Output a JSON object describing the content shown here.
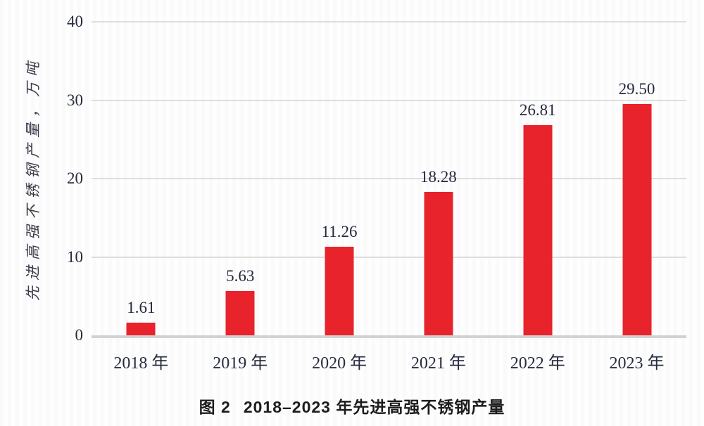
{
  "chart_data": {
    "type": "bar",
    "categories": [
      "2018 年",
      "2019 年",
      "2020 年",
      "2021 年",
      "2022 年",
      "2023 年"
    ],
    "values": [
      1.61,
      5.63,
      11.26,
      18.28,
      26.81,
      29.5
    ],
    "value_labels": [
      "1.61",
      "5.63",
      "11.26",
      "18.28",
      "26.81",
      "29.50"
    ],
    "series_name": "先进高强不锈钢产量",
    "title": "图 2 2018–2023 年先进高强不锈钢产量",
    "xlabel": "",
    "ylabel": "先进高强不锈钢产量，万吨",
    "ylim": [
      0,
      40
    ],
    "yticks": [
      0,
      10,
      20,
      30,
      40
    ],
    "grid": "horizontal",
    "legend": "none",
    "bar_color": "#e8232b"
  },
  "caption": {
    "prefix": "图 2",
    "text": "2018–2023 年先进高强不锈钢产量"
  },
  "colors": {
    "bar": "#e8232b",
    "gridline": "#dedede",
    "baseline": "#d2d2d2",
    "label_text": "#23283c",
    "caption_text": "#1d1d1d"
  }
}
